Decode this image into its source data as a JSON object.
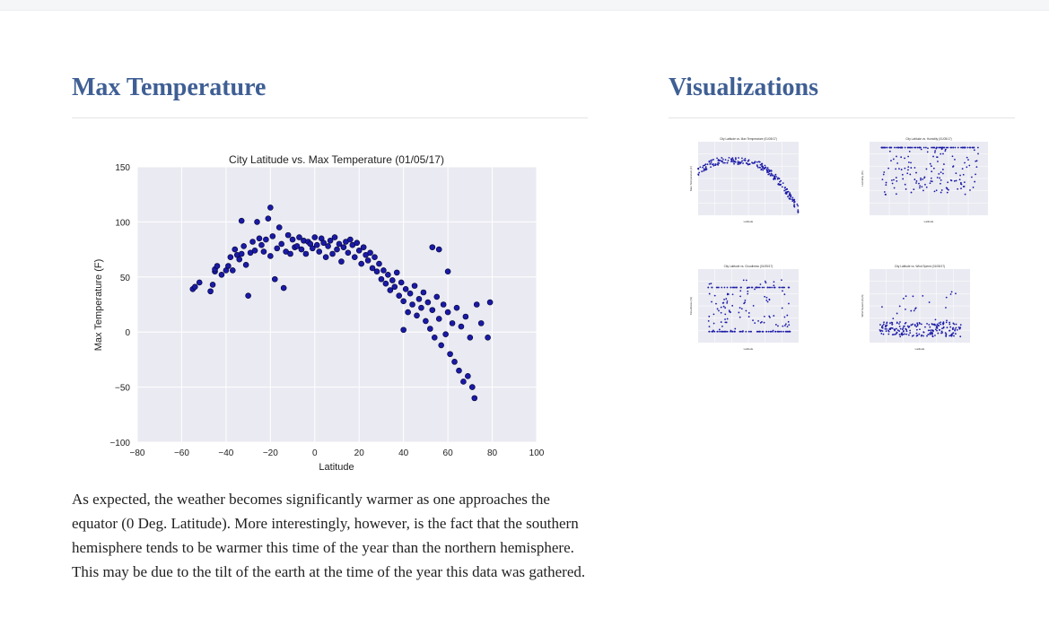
{
  "main": {
    "title": "Max Temperature",
    "description": "As expected, the weather becomes significantly warmer as one approaches the equator (0 Deg. Latitude). More interestingly, however, is the fact that the southern hemisphere tends to be warmer this time of the year than the northern hemisphere. This may be due to the tilt of the earth at the time of the year this data was gathered."
  },
  "sidebar": {
    "title": "Visualizations",
    "thumbnails": [
      {
        "title": "City Latitude vs. Max Temperature (01/05/17)",
        "xlabel": "Latitude",
        "ylabel": "Max Temperature (F)"
      },
      {
        "title": "City Latitude vs. Humidity (01/05/17)",
        "xlabel": "Latitude",
        "ylabel": "Humidity (%)"
      },
      {
        "title": "City Latitude vs. Cloudiness (01/05/17)",
        "xlabel": "Latitude",
        "ylabel": "Cloudiness (%)"
      },
      {
        "title": "City Latitude vs. Wind Speed (01/05/17)",
        "xlabel": "Latitude",
        "ylabel": "Wind Speed (mph)"
      }
    ]
  },
  "colors": {
    "heading": "#3f5f94",
    "plot_bg": "#eaeaf2",
    "point": "#1a1aa6",
    "point_edge": "#000033"
  },
  "chart_data": {
    "type": "scatter",
    "title": "City Latitude vs. Max Temperature (01/05/17)",
    "xlabel": "Latitude",
    "ylabel": "Max Temperature (F)",
    "xlim": [
      -80,
      100
    ],
    "ylim": [
      -100,
      150
    ],
    "xticks": [
      -80,
      -60,
      -40,
      -20,
      0,
      20,
      40,
      60,
      80,
      100
    ],
    "yticks": [
      -100,
      -50,
      0,
      50,
      100,
      150
    ],
    "grid": true,
    "legend": "none",
    "series": [
      {
        "points": [
          [
            -55,
            39
          ],
          [
            -54,
            41
          ],
          [
            -52,
            45
          ],
          [
            -47,
            37
          ],
          [
            -46,
            43
          ],
          [
            -45,
            55
          ],
          [
            -45,
            57
          ],
          [
            -44,
            60
          ],
          [
            -42,
            52
          ],
          [
            -40,
            56
          ],
          [
            -39,
            60
          ],
          [
            -38,
            68
          ],
          [
            -37,
            56
          ],
          [
            -36,
            75
          ],
          [
            -35,
            70
          ],
          [
            -34,
            66
          ],
          [
            -33,
            101
          ],
          [
            -33,
            71
          ],
          [
            -32,
            78
          ],
          [
            -31,
            61
          ],
          [
            -30,
            33
          ],
          [
            -29,
            72
          ],
          [
            -28,
            82
          ],
          [
            -27,
            74
          ],
          [
            -26,
            100
          ],
          [
            -25,
            85
          ],
          [
            -24,
            79
          ],
          [
            -23,
            73
          ],
          [
            -22,
            84
          ],
          [
            -21,
            103
          ],
          [
            -20,
            69
          ],
          [
            -20,
            113
          ],
          [
            -19,
            87
          ],
          [
            -18,
            48
          ],
          [
            -17,
            76
          ],
          [
            -16,
            95
          ],
          [
            -15,
            80
          ],
          [
            -14,
            40
          ],
          [
            -13,
            73
          ],
          [
            -12,
            88
          ],
          [
            -11,
            71
          ],
          [
            -10,
            84
          ],
          [
            -9,
            77
          ],
          [
            -8,
            78
          ],
          [
            -7,
            86
          ],
          [
            -6,
            75
          ],
          [
            -5,
            83
          ],
          [
            -4,
            71
          ],
          [
            -3,
            82
          ],
          [
            -2,
            80
          ],
          [
            -1,
            76
          ],
          [
            0,
            86
          ],
          [
            1,
            79
          ],
          [
            2,
            73
          ],
          [
            3,
            85
          ],
          [
            4,
            81
          ],
          [
            5,
            68
          ],
          [
            6,
            78
          ],
          [
            7,
            83
          ],
          [
            8,
            71
          ],
          [
            9,
            86
          ],
          [
            10,
            75
          ],
          [
            11,
            80
          ],
          [
            12,
            64
          ],
          [
            13,
            77
          ],
          [
            14,
            82
          ],
          [
            15,
            72
          ],
          [
            16,
            84
          ],
          [
            17,
            79
          ],
          [
            18,
            68
          ],
          [
            19,
            81
          ],
          [
            20,
            74
          ],
          [
            21,
            62
          ],
          [
            22,
            77
          ],
          [
            23,
            70
          ],
          [
            24,
            65
          ],
          [
            25,
            72
          ],
          [
            26,
            58
          ],
          [
            27,
            68
          ],
          [
            28,
            55
          ],
          [
            29,
            62
          ],
          [
            30,
            48
          ],
          [
            31,
            56
          ],
          [
            32,
            44
          ],
          [
            33,
            52
          ],
          [
            34,
            38
          ],
          [
            35,
            47
          ],
          [
            36,
            41
          ],
          [
            37,
            54
          ],
          [
            38,
            33
          ],
          [
            39,
            45
          ],
          [
            40,
            2
          ],
          [
            40,
            28
          ],
          [
            41,
            39
          ],
          [
            42,
            18
          ],
          [
            43,
            35
          ],
          [
            44,
            25
          ],
          [
            45,
            42
          ],
          [
            46,
            15
          ],
          [
            47,
            30
          ],
          [
            48,
            22
          ],
          [
            49,
            36
          ],
          [
            50,
            10
          ],
          [
            51,
            27
          ],
          [
            52,
            3
          ],
          [
            53,
            20
          ],
          [
            53,
            77
          ],
          [
            54,
            -5
          ],
          [
            55,
            32
          ],
          [
            56,
            12
          ],
          [
            56,
            75
          ],
          [
            57,
            -12
          ],
          [
            58,
            25
          ],
          [
            59,
            -2
          ],
          [
            60,
            18
          ],
          [
            60,
            55
          ],
          [
            61,
            -20
          ],
          [
            62,
            8
          ],
          [
            63,
            -27
          ],
          [
            64,
            22
          ],
          [
            65,
            -35
          ],
          [
            66,
            5
          ],
          [
            67,
            -45
          ],
          [
            68,
            14
          ],
          [
            69,
            -40
          ],
          [
            70,
            -5
          ],
          [
            71,
            -50
          ],
          [
            72,
            -60
          ],
          [
            73,
            25
          ],
          [
            75,
            8
          ],
          [
            78,
            -5
          ],
          [
            79,
            27
          ]
        ]
      }
    ]
  }
}
